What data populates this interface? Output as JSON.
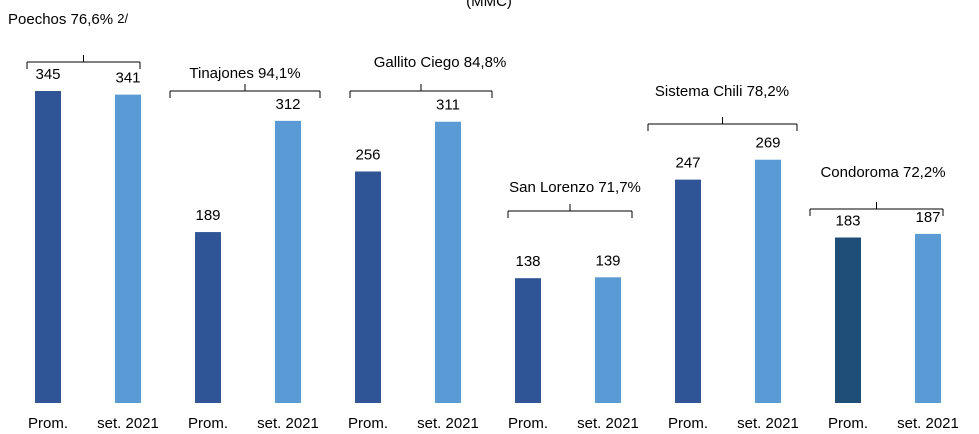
{
  "chart_data": {
    "type": "grouped-bar",
    "title": "(MMC)",
    "groups": [
      {
        "label": "Poechos 76,6%",
        "note": "2/",
        "categories": [
          "Prom.",
          "set. 2021"
        ],
        "values": [
          345,
          341
        ],
        "colors": [
          "#2f5597",
          "#5b9bd5"
        ]
      },
      {
        "label": "Tinajones 94,1%",
        "categories": [
          "Prom.",
          "set. 2021"
        ],
        "values": [
          189,
          312
        ],
        "colors": [
          "#2f5597",
          "#5b9bd5"
        ]
      },
      {
        "label": "Gallito Ciego 84,8%",
        "categories": [
          "Prom.",
          "set. 2021"
        ],
        "values": [
          256,
          311
        ],
        "colors": [
          "#2f5597",
          "#5b9bd5"
        ]
      },
      {
        "label": "San Lorenzo 71,7%",
        "categories": [
          "Prom.",
          "set. 2021"
        ],
        "values": [
          138,
          139
        ],
        "colors": [
          "#2f5597",
          "#5b9bd5"
        ]
      },
      {
        "label": "Sistema Chili 78,2%",
        "categories": [
          "Prom.",
          "set. 2021"
        ],
        "values": [
          247,
          269
        ],
        "colors": [
          "#2f5597",
          "#5b9bd5"
        ]
      },
      {
        "label": "Condoroma 72,2%",
        "categories": [
          "Prom.",
          "set. 2021"
        ],
        "values": [
          183,
          187
        ],
        "colors": [
          "#1f4e79",
          "#5b9bd5"
        ]
      }
    ]
  }
}
